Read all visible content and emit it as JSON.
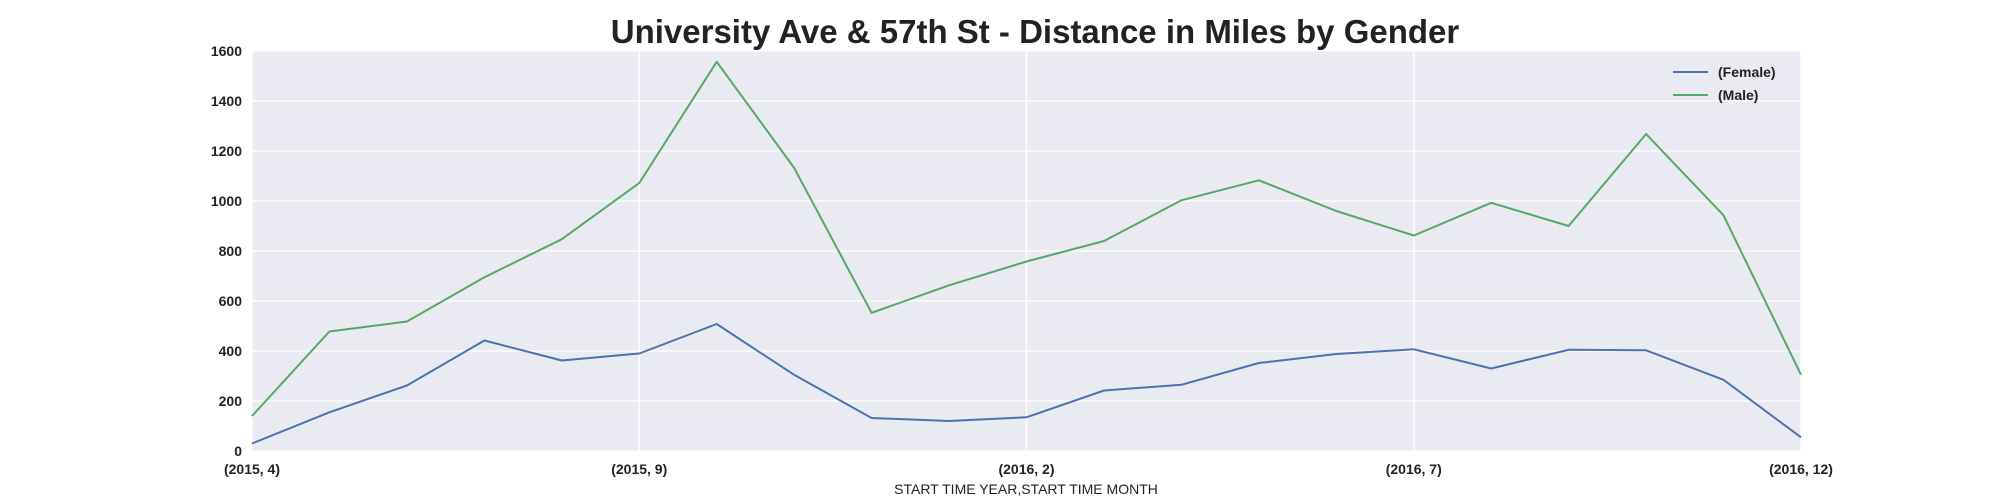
{
  "chart_data": {
    "type": "line",
    "title": "University Ave & 57th St - Distance in Miles by Gender",
    "xlabel": "START TIME YEAR,START TIME MONTH",
    "ylabel": "",
    "x": [
      "(2015, 4)",
      "(2015, 5)",
      "(2015, 6)",
      "(2015, 7)",
      "(2015, 8)",
      "(2015, 9)",
      "(2015, 10)",
      "(2015, 11)",
      "(2015, 12)",
      "(2016, 1)",
      "(2016, 2)",
      "(2016, 3)",
      "(2016, 4)",
      "(2016, 5)",
      "(2016, 6)",
      "(2016, 7)",
      "(2016, 8)",
      "(2016, 9)",
      "(2016, 10)",
      "(2016, 11)",
      "(2016, 12)"
    ],
    "x_tick_labels": [
      "(2015, 4)",
      "(2015, 9)",
      "(2016, 2)",
      "(2016, 7)",
      "(2016, 12)"
    ],
    "ylim": [
      0,
      1600
    ],
    "y_ticks": [
      "0",
      "200",
      "400",
      "600",
      "800",
      "1000",
      "1200",
      "1400",
      "1600"
    ],
    "grid": true,
    "legend_position": "top-right",
    "series": [
      {
        "name": "(Female)",
        "color": "#4c72b0",
        "values": [
          30,
          155,
          262,
          442,
          362,
          390,
          508,
          305,
          132,
          120,
          135,
          242,
          265,
          352,
          388,
          407,
          330,
          405,
          403,
          285,
          55
        ]
      },
      {
        "name": "(Male)",
        "color": "#55a868",
        "values": [
          140,
          478,
          518,
          695,
          847,
          1072,
          1557,
          1133,
          553,
          663,
          758,
          840,
          1003,
          1083,
          960,
          862,
          993,
          900,
          1268,
          943,
          305
        ]
      }
    ]
  }
}
